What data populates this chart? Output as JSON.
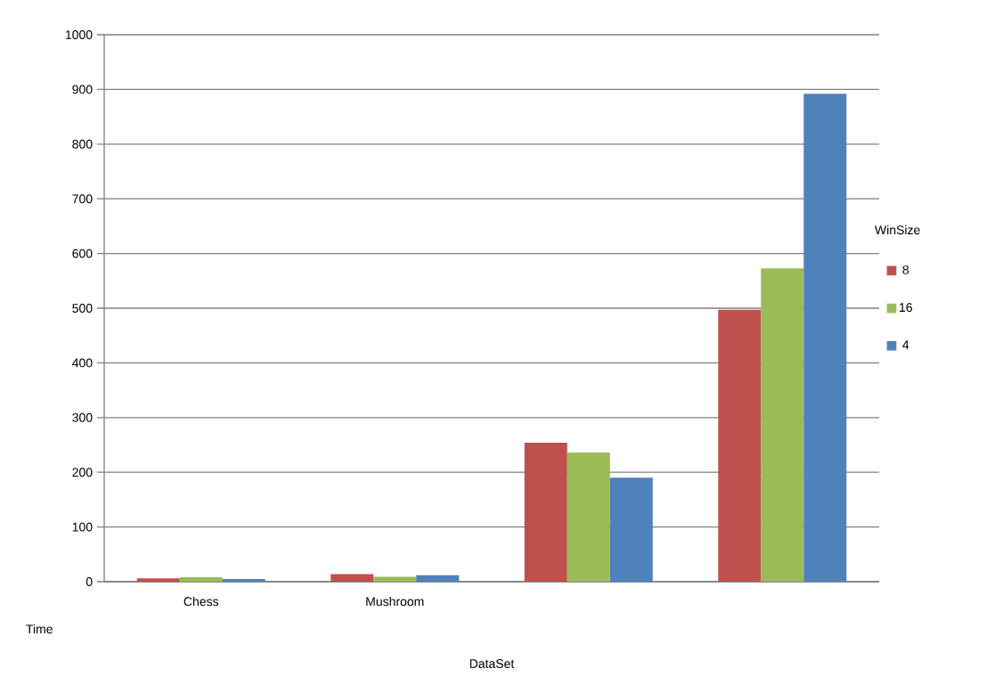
{
  "chart_data": {
    "type": "bar",
    "xlabel": "DataSet",
    "ylabel": "Time",
    "legend_title": "WinSize",
    "categories": [
      "Chess",
      "Mushroom",
      null,
      null
    ],
    "series": [
      {
        "name": "8",
        "color": "#c0504d",
        "values": [
          6,
          14,
          254,
          497
        ]
      },
      {
        "name": "16",
        "color": "#9bbb59",
        "values": [
          8,
          9,
          236,
          573
        ]
      },
      {
        "name": "4",
        "color": "#4f81bd",
        "values": [
          5,
          12,
          190,
          892
        ]
      }
    ],
    "ylim": [
      0,
      1000
    ],
    "yticks": [
      0,
      100,
      200,
      300,
      400,
      500,
      600,
      700,
      800,
      900,
      1000
    ],
    "grid": "y",
    "legend": "right"
  }
}
